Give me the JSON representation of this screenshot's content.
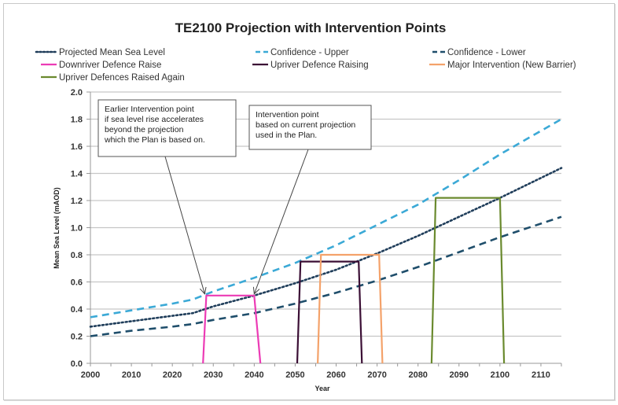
{
  "chart_data": {
    "type": "line",
    "title": "TE2100 Projection with Intervention Points",
    "xlabel": "Year",
    "ylabel": "Mean Sea Level (mAOD)",
    "xlim": [
      2000,
      2115
    ],
    "ylim": [
      0,
      2.0
    ],
    "x_ticks": [
      2000,
      2010,
      2020,
      2030,
      2040,
      2050,
      2060,
      2070,
      2080,
      2090,
      2100,
      2110
    ],
    "x_tick_labels": [
      "2000",
      "2010",
      "2020",
      "2030",
      "2040",
      "2050",
      "2060",
      "2070",
      "2080",
      "2090",
      "2100",
      "2110"
    ],
    "y_ticks": [
      0,
      0.2,
      0.4,
      0.6,
      0.8,
      1.0,
      1.2,
      1.4,
      1.6,
      1.8,
      2.0
    ],
    "y_tick_labels": [
      "0.0",
      "0.2",
      "0.4",
      "0.6",
      "0.8",
      "1.0",
      "1.2",
      "1.4",
      "1.6",
      "1.8",
      "2.0"
    ],
    "grid": true,
    "legend_position": "top",
    "series": [
      {
        "name": "Projected Mean Sea Level",
        "style": "dotted",
        "color": "#1f3d5a",
        "x": [
          2000,
          2010,
          2020,
          2025,
          2030,
          2040,
          2050,
          2060,
          2070,
          2080,
          2090,
          2100,
          2115
        ],
        "y": [
          0.27,
          0.31,
          0.35,
          0.37,
          0.42,
          0.5,
          0.59,
          0.69,
          0.81,
          0.94,
          1.08,
          1.22,
          1.44
        ]
      },
      {
        "name": "Confidence - Upper",
        "style": "dashed",
        "color": "#3ba9d6",
        "x": [
          2000,
          2010,
          2020,
          2025,
          2030,
          2040,
          2050,
          2060,
          2070,
          2080,
          2090,
          2100,
          2115
        ],
        "y": [
          0.34,
          0.39,
          0.44,
          0.47,
          0.53,
          0.63,
          0.74,
          0.87,
          1.02,
          1.17,
          1.35,
          1.54,
          1.8
        ]
      },
      {
        "name": "Confidence - Lower",
        "style": "dashed",
        "color": "#1f4e6b",
        "x": [
          2000,
          2010,
          2020,
          2025,
          2030,
          2040,
          2050,
          2060,
          2070,
          2080,
          2090,
          2100,
          2115
        ],
        "y": [
          0.2,
          0.24,
          0.27,
          0.29,
          0.32,
          0.37,
          0.44,
          0.52,
          0.61,
          0.71,
          0.82,
          0.93,
          1.08
        ]
      },
      {
        "name": "Downriver Defence Raise",
        "style": "solid",
        "color": "#ec3bb5",
        "x": [
          2027.5,
          2028.3,
          2040.0,
          2041.5
        ],
        "y": [
          0,
          0.5,
          0.5,
          0
        ]
      },
      {
        "name": "Upriver Defence Raising",
        "style": "solid",
        "color": "#3b0f35",
        "x": [
          2050.5,
          2051.3,
          2065.5,
          2066.3
        ],
        "y": [
          0,
          0.75,
          0.75,
          0
        ]
      },
      {
        "name": "Major Intervention (New Barrier)",
        "style": "solid",
        "color": "#f4a26a",
        "x": [
          2055.5,
          2056.3,
          2070.5,
          2071.3
        ],
        "y": [
          0,
          0.8,
          0.8,
          0
        ]
      },
      {
        "name": "Upriver Defences Raised Again",
        "style": "solid",
        "color": "#6a8a2e",
        "x": [
          2083.3,
          2084.3,
          2100.0,
          2101.0
        ],
        "y": [
          0,
          1.22,
          1.22,
          0
        ]
      }
    ],
    "annotations": [
      {
        "lines": [
          "Earlier Intervention point",
          "if sea level rise accelerates",
          "beyond the projection",
          "which the Plan is based on."
        ],
        "points_to": {
          "x": 2028.3,
          "y": 0.5
        }
      },
      {
        "lines": [
          "Intervention point",
          "based on current projection",
          "used in the Plan."
        ],
        "points_to": {
          "x": 2040.0,
          "y": 0.5
        }
      }
    ]
  }
}
